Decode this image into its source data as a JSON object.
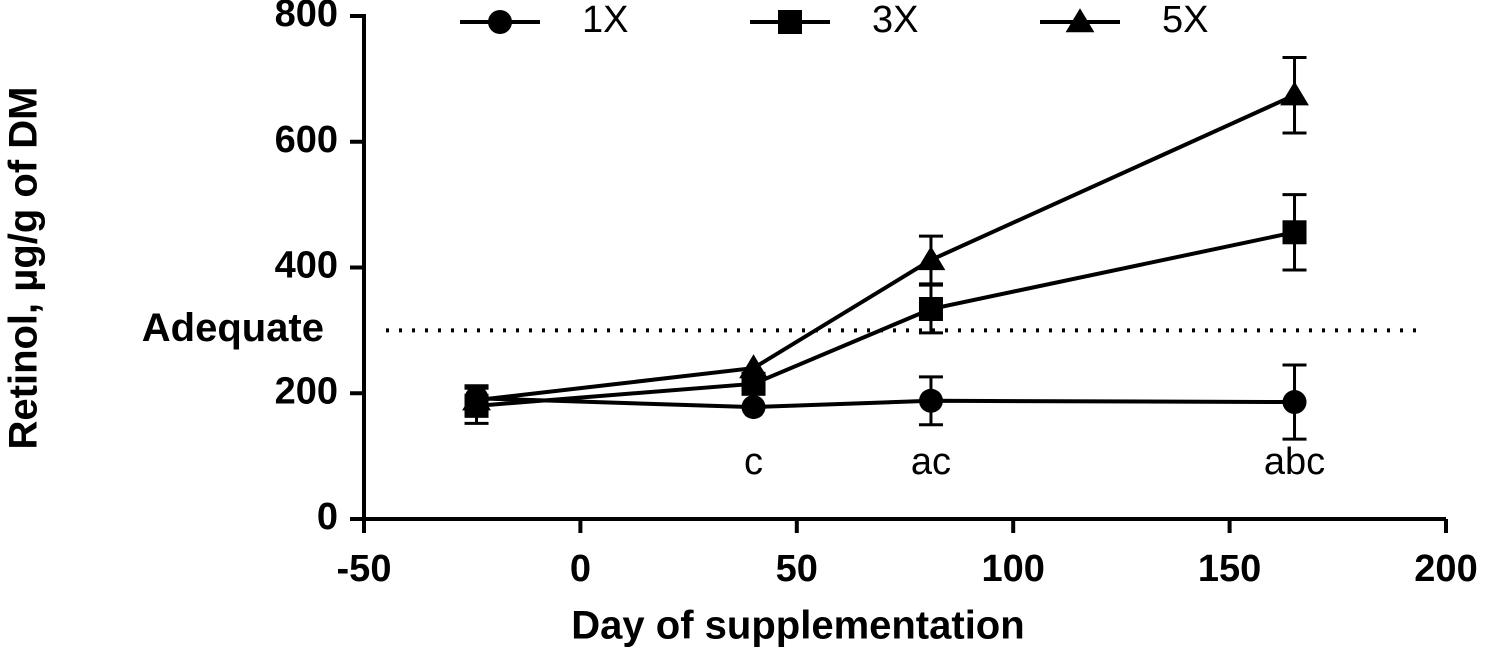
{
  "chart_data": {
    "type": "line",
    "x_label": "Day of supplementation",
    "y_label": "Retinol, µg/g of DM",
    "xlim": [
      -50,
      200
    ],
    "xticks": [
      -50,
      0,
      50,
      100,
      150,
      200
    ],
    "ylim": [
      0,
      800
    ],
    "yticks": [
      0,
      200,
      400,
      600,
      800
    ],
    "x": [
      -24,
      40,
      81,
      165
    ],
    "series": [
      {
        "name": "1X",
        "color": "#000000",
        "marker": "circle",
        "values": [
          192,
          178,
          188,
          186
        ],
        "errors": [
          20,
          null,
          38,
          59
        ]
      },
      {
        "name": "3X",
        "color": "#000000",
        "marker": "square",
        "values": [
          180,
          215,
          334,
          456
        ],
        "errors": [
          28,
          null,
          38,
          60
        ]
      },
      {
        "name": "5X",
        "color": "#000000",
        "marker": "triangle",
        "values": [
          189,
          240,
          412,
          674
        ],
        "errors": [
          null,
          null,
          38,
          60
        ]
      }
    ],
    "reference_line": {
      "label": "Adequate",
      "value": 300
    },
    "annotations": [
      {
        "text": "c",
        "x": 40
      },
      {
        "text": "ac",
        "x": 81
      },
      {
        "text": "abc",
        "x": 165
      }
    ]
  }
}
